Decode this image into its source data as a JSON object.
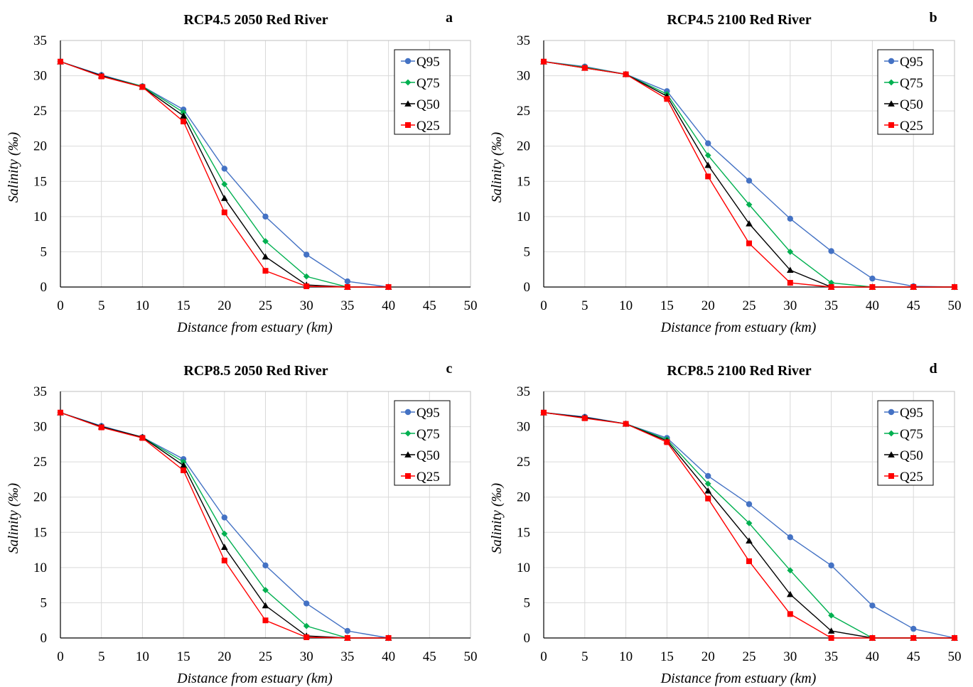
{
  "colors": {
    "Q95": "#4472C4",
    "Q75": "#00B050",
    "Q50": "#000000",
    "Q25": "#FF0000"
  },
  "chart_data": [
    {
      "type": "line",
      "title": "RCP4.5 2050 Red River",
      "panel_label": "a",
      "xlabel": "Distance from estuary (km)",
      "ylabel": "Salinity (‰)",
      "xlim": [
        0,
        50
      ],
      "ylim": [
        0,
        35
      ],
      "xticks": [
        0,
        5,
        10,
        15,
        20,
        25,
        30,
        35,
        40,
        45,
        50
      ],
      "yticks": [
        0,
        5,
        10,
        15,
        20,
        25,
        30,
        35
      ],
      "grid": true,
      "legend_position": "top-right",
      "series": [
        {
          "name": "Q95",
          "marker": "circle",
          "x": [
            0,
            5,
            10,
            15,
            20,
            25,
            30,
            35,
            40
          ],
          "y": [
            32,
            30.1,
            28.5,
            25.2,
            16.8,
            10,
            4.6,
            0.8,
            0
          ]
        },
        {
          "name": "Q75",
          "marker": "diamond",
          "x": [
            0,
            5,
            10,
            15,
            20,
            25,
            30,
            35,
            40
          ],
          "y": [
            32,
            30,
            28.5,
            24.8,
            14.6,
            6.5,
            1.5,
            0,
            0
          ]
        },
        {
          "name": "Q50",
          "marker": "triangle",
          "x": [
            0,
            5,
            10,
            15,
            20,
            25,
            30,
            35,
            40
          ],
          "y": [
            32,
            30,
            28.4,
            24.3,
            12.6,
            4.3,
            0.3,
            0,
            0
          ]
        },
        {
          "name": "Q25",
          "marker": "square",
          "x": [
            0,
            5,
            10,
            15,
            20,
            25,
            30,
            35,
            40
          ],
          "y": [
            32,
            29.9,
            28.4,
            23.5,
            10.6,
            2.3,
            0.1,
            0,
            0
          ]
        }
      ]
    },
    {
      "type": "line",
      "title": "RCP4.5 2100 Red River",
      "panel_label": "b",
      "xlabel": "Distance from estuary (km)",
      "ylabel": "Salinity (‰)",
      "xlim": [
        0,
        50
      ],
      "ylim": [
        0,
        35
      ],
      "xticks": [
        0,
        5,
        10,
        15,
        20,
        25,
        30,
        35,
        40,
        45,
        50
      ],
      "yticks": [
        0,
        5,
        10,
        15,
        20,
        25,
        30,
        35
      ],
      "grid": true,
      "legend_position": "top-right",
      "series": [
        {
          "name": "Q95",
          "marker": "circle",
          "x": [
            0,
            5,
            10,
            15,
            20,
            25,
            30,
            35,
            40,
            45,
            50
          ],
          "y": [
            32,
            31.3,
            30.2,
            27.8,
            20.4,
            15.1,
            9.7,
            5.1,
            1.2,
            0.1,
            0
          ]
        },
        {
          "name": "Q75",
          "marker": "diamond",
          "x": [
            0,
            5,
            10,
            15,
            20,
            25,
            30,
            35,
            40,
            45,
            50
          ],
          "y": [
            32,
            31.2,
            30.2,
            27.4,
            18.7,
            11.7,
            5,
            0.6,
            0,
            0,
            0
          ]
        },
        {
          "name": "Q50",
          "marker": "triangle",
          "x": [
            0,
            5,
            10,
            15,
            20,
            25,
            30,
            35,
            40,
            45,
            50
          ],
          "y": [
            32,
            31.1,
            30.2,
            27.1,
            17.3,
            9,
            2.4,
            0,
            0,
            0,
            0
          ]
        },
        {
          "name": "Q25",
          "marker": "square",
          "x": [
            0,
            5,
            10,
            15,
            20,
            25,
            30,
            35,
            40,
            45,
            50
          ],
          "y": [
            32,
            31.1,
            30.2,
            26.7,
            15.7,
            6.2,
            0.6,
            0,
            0,
            0,
            0
          ]
        }
      ]
    },
    {
      "type": "line",
      "title": "RCP8.5 2050 Red River",
      "panel_label": "c",
      "xlabel": "Distance from estuary (km)",
      "ylabel": "Salinity (‰)",
      "xlim": [
        0,
        50
      ],
      "ylim": [
        0,
        35
      ],
      "xticks": [
        0,
        5,
        10,
        15,
        20,
        25,
        30,
        35,
        40,
        45,
        50
      ],
      "yticks": [
        0,
        5,
        10,
        15,
        20,
        25,
        30,
        35
      ],
      "grid": true,
      "legend_position": "top-right",
      "series": [
        {
          "name": "Q95",
          "marker": "circle",
          "x": [
            0,
            5,
            10,
            15,
            20,
            25,
            30,
            35,
            40
          ],
          "y": [
            32,
            30.1,
            28.5,
            25.4,
            17.1,
            10.3,
            4.9,
            1,
            0
          ]
        },
        {
          "name": "Q75",
          "marker": "diamond",
          "x": [
            0,
            5,
            10,
            15,
            20,
            25,
            30,
            35,
            40
          ],
          "y": [
            32,
            30,
            28.5,
            25,
            14.8,
            6.8,
            1.7,
            0,
            0
          ]
        },
        {
          "name": "Q50",
          "marker": "triangle",
          "x": [
            0,
            5,
            10,
            15,
            20,
            25,
            30,
            35,
            40
          ],
          "y": [
            32,
            30,
            28.5,
            24.5,
            12.9,
            4.6,
            0.3,
            0,
            0
          ]
        },
        {
          "name": "Q25",
          "marker": "square",
          "x": [
            0,
            5,
            10,
            15,
            20,
            25,
            30,
            35,
            40
          ],
          "y": [
            32,
            29.9,
            28.4,
            23.8,
            11,
            2.5,
            0.1,
            0,
            0
          ]
        }
      ]
    },
    {
      "type": "line",
      "title": "RCP8.5 2100 Red River",
      "panel_label": "d",
      "xlabel": "Distance from estuary (km)",
      "ylabel": "Salinity (‰)",
      "xlim": [
        0,
        50
      ],
      "ylim": [
        0,
        35
      ],
      "xticks": [
        0,
        5,
        10,
        15,
        20,
        25,
        30,
        35,
        40,
        45,
        50
      ],
      "yticks": [
        0,
        5,
        10,
        15,
        20,
        25,
        30,
        35
      ],
      "grid": true,
      "legend_position": "top-right",
      "series": [
        {
          "name": "Q95",
          "marker": "circle",
          "x": [
            0,
            5,
            10,
            15,
            20,
            25,
            30,
            35,
            40,
            45,
            50
          ],
          "y": [
            32,
            31.4,
            30.4,
            28.4,
            23,
            19,
            14.3,
            10.3,
            4.6,
            1.3,
            0
          ]
        },
        {
          "name": "Q75",
          "marker": "diamond",
          "x": [
            0,
            5,
            10,
            15,
            20,
            25,
            30,
            35,
            40,
            45,
            50
          ],
          "y": [
            32,
            31.3,
            30.4,
            28.2,
            21.9,
            16.3,
            9.6,
            3.2,
            0,
            0,
            0
          ]
        },
        {
          "name": "Q50",
          "marker": "triangle",
          "x": [
            0,
            5,
            10,
            15,
            20,
            25,
            30,
            35,
            40,
            45,
            50
          ],
          "y": [
            32,
            31.3,
            30.4,
            28,
            20.9,
            13.8,
            6.2,
            1,
            0,
            0,
            0
          ]
        },
        {
          "name": "Q25",
          "marker": "square",
          "x": [
            0,
            5,
            10,
            15,
            20,
            25,
            30,
            35,
            40,
            45,
            50
          ],
          "y": [
            32,
            31.2,
            30.4,
            27.8,
            19.8,
            10.9,
            3.4,
            0,
            0,
            0,
            0
          ]
        }
      ]
    }
  ]
}
